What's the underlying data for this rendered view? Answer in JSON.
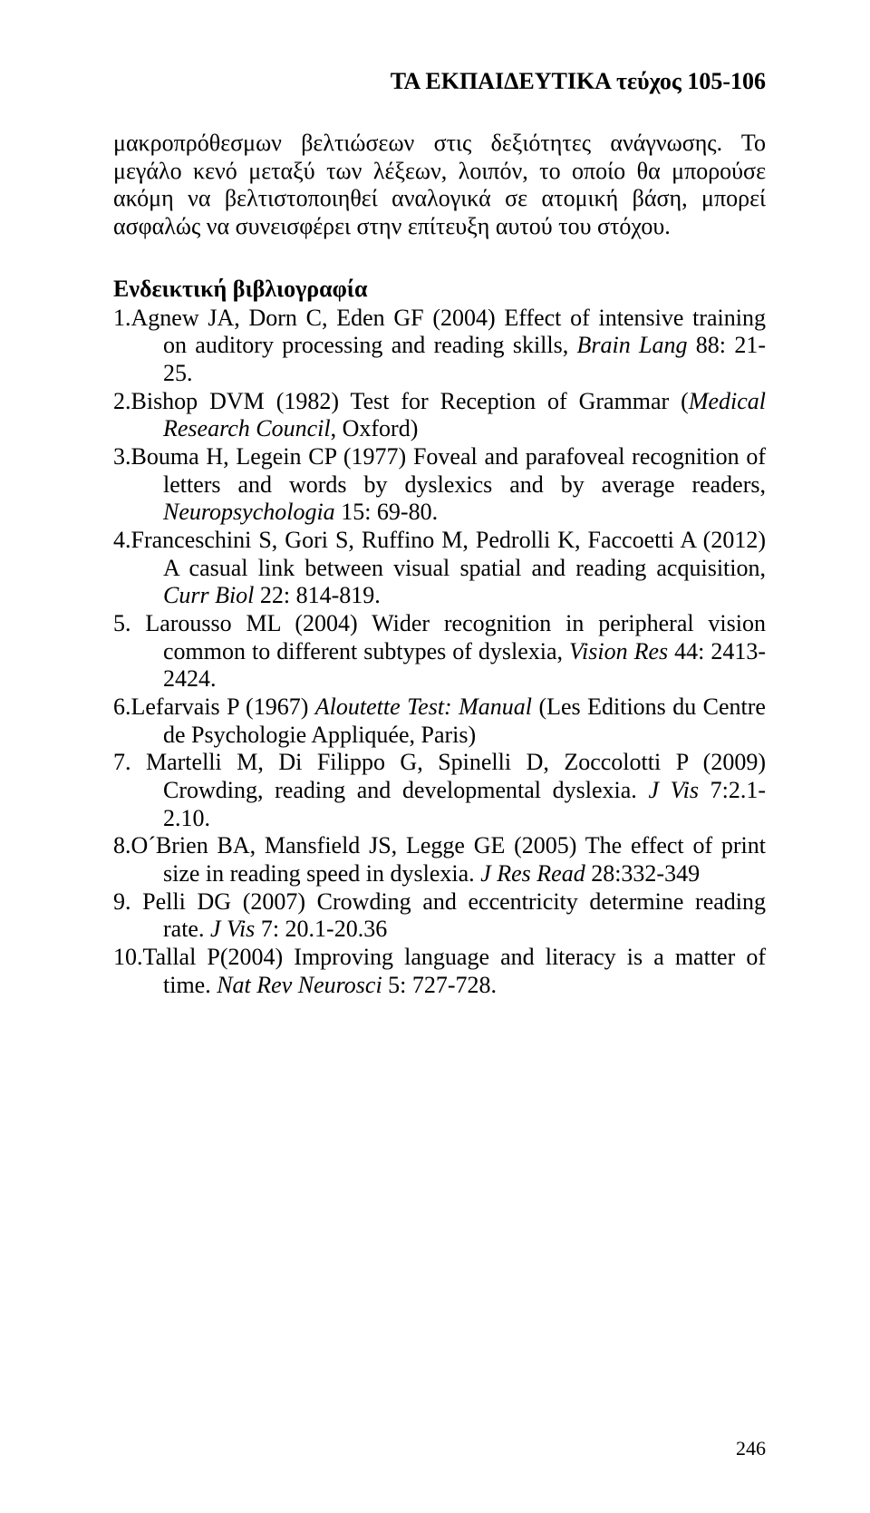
{
  "header": "ΤΑ ΕΚΠΑΙΔΕΥΤΙΚΑ  τεύχος 105-106",
  "para": "μακροπρόθεσμων βελτιώσεων στις δεξιότητες ανάγνωσης. Το μεγάλο κενό μεταξύ των λέξεων, λοιπόν, το οποίο θα μπορούσε ακόμη να βελτιστοποιηθεί αναλογικά σε ατομική βάση, μπορεί ασφαλώς να συνεισφέρει στην επίτευξη αυτού του στόχου.",
  "biblio_head": "Ενδεικτική βιβλιογραφία",
  "biblio": {
    "i1": {
      "n": "1.",
      "a": "Agnew JA,  Dorn C, Eden GF (2004) Effect of intensive training on auditory processing and reading skills, ",
      "it": "Brain Lang",
      "b": " 88: 21-25."
    },
    "i2": {
      "n": "2.",
      "a": "Bishop DVM (1982) Test for Reception of Grammar (",
      "it": "Medical Research Council",
      "b": ", Oxford)"
    },
    "i3": {
      "n": "3.",
      "a": "Bouma H, Legein CP (1977) Foveal and parafoveal recognition of letters and words by dyslexics and by average readers, ",
      "it": "Neuropsychologia",
      "b": " 15: 69-80."
    },
    "i4": {
      "n": "4.",
      "a": "Franceschini S, Gori S, Ruffino M, Pedrolli K, Faccoetti A (2012) A casual link between visual spatial and reading acquisition, ",
      "it": "Curr Biol",
      "b": " 22: 814-819."
    },
    "i5": {
      "n": "5.",
      "a": " Larousso ML (2004) Wider recognition in peripheral vision common to different subtypes of dyslexia, ",
      "it": "Vision Res",
      "b": " 44: 2413-2424."
    },
    "i6": {
      "n": "6.",
      "a": "Lefarvais P (1967) ",
      "it": "Aloutette Test: Manual",
      "b": " (Les Editions du Centre de Psychologie Appliquée, Paris)"
    },
    "i7": {
      "n": "7.",
      "a": " Martelli M, Di Filippo G, Spinelli D, Zoccolotti P (2009) Crowding, reading and developmental dyslexia.  ",
      "it": "J Vis",
      "b": " 7:2.1-2.10."
    },
    "i8": {
      "n": "8.",
      "a": "O´Brien BA, Mansfield JS, Legge GE (2005) The effect of print size in reading speed in dyslexia. ",
      "it": "J Res Read",
      "b": " 28:332-349"
    },
    "i9": {
      "n": "9.",
      "a": " Pelli DG (2007) Crowding and eccentricity determine reading rate. ",
      "it": "J Vis",
      "b": " 7: 20.1-20.36"
    },
    "i10": {
      "n": "10.",
      "a": "Tallal P(2004) Improving language and literacy is a matter of time. ",
      "it": "Nat Rev Neurosci",
      "b": " 5: 727-728."
    }
  },
  "page_number": "246"
}
